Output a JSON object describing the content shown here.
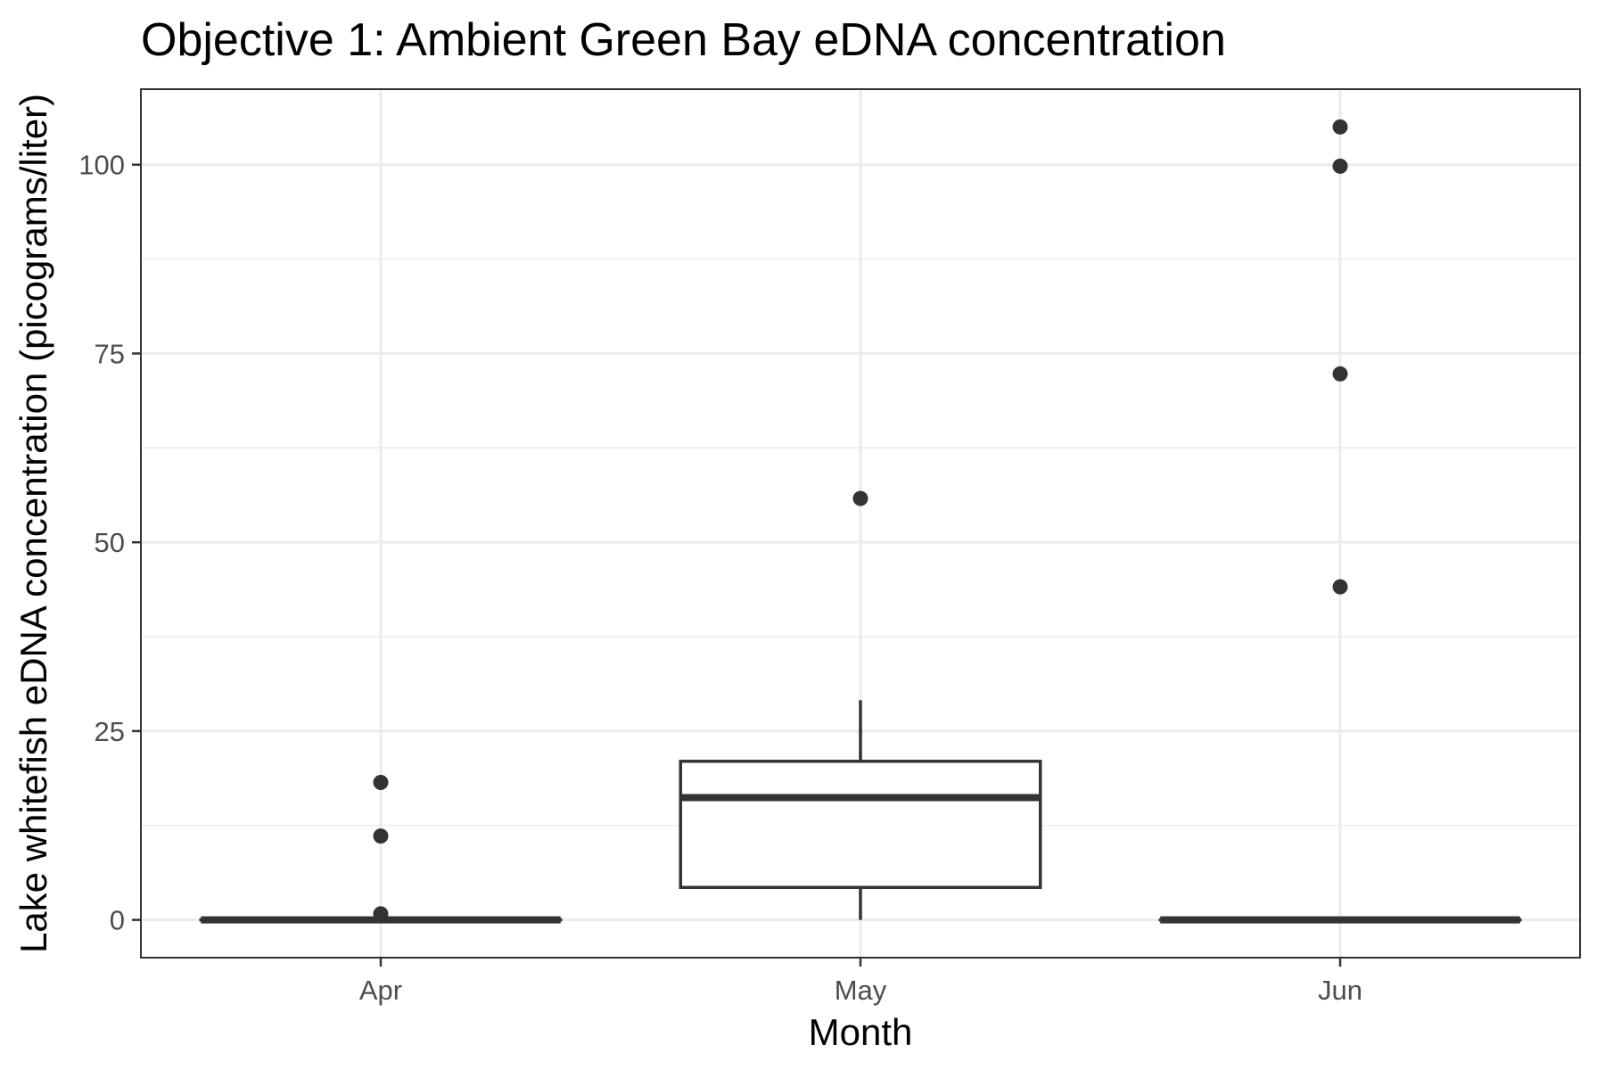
{
  "chart_data": {
    "type": "box",
    "title": "Objective 1: Ambient Green Bay eDNA concentration",
    "xlabel": "Month",
    "ylabel": "Lake whitefish eDNA concentration (picograms/liter)",
    "ylim": [
      -5,
      110
    ],
    "yticks": [
      0,
      25,
      50,
      75,
      100
    ],
    "yticks_minor": [
      12.5,
      37.5,
      62.5,
      87.5
    ],
    "grid": true,
    "legend": "none",
    "categories": [
      "Apr",
      "May",
      "Jun"
    ],
    "boxes": [
      {
        "category": "Apr",
        "whisker_low": 0,
        "q1": 0,
        "median": 0,
        "q3": 0,
        "whisker_high": 0,
        "outliers": [
          18.2,
          11.1,
          0.8
        ]
      },
      {
        "category": "May",
        "whisker_low": 0,
        "q1": 4.3,
        "median": 16.2,
        "q3": 21.0,
        "whisker_high": 29.1,
        "outliers": [
          55.8
        ]
      },
      {
        "category": "Jun",
        "whisker_low": 0,
        "q1": 0,
        "median": 0,
        "q3": 0,
        "whisker_high": 0,
        "outliers": [
          105.0,
          99.8,
          72.3,
          44.1
        ]
      }
    ],
    "colors": {
      "box_stroke": "#333333",
      "box_fill": "#ffffff",
      "grid": "#ebebeb",
      "tick_text": "#4d4d4d"
    }
  }
}
